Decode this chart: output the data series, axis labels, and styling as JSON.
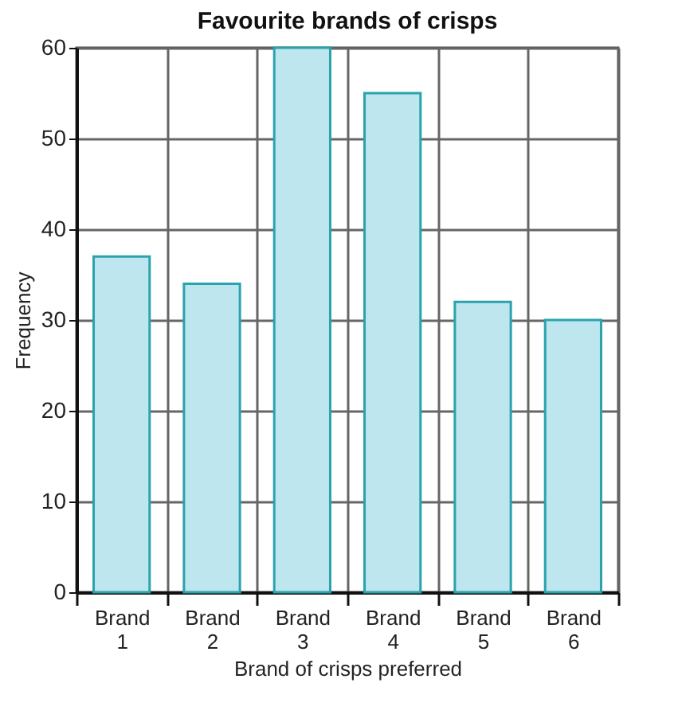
{
  "chart_data": {
    "type": "bar",
    "title": "Favourite brands of crisps",
    "xlabel": "Brand of crisps preferred",
    "ylabel": "Frequency",
    "categories": [
      "Brand 1",
      "Brand 2",
      "Brand 3",
      "Brand 4",
      "Brand 5",
      "Brand 6"
    ],
    "values": [
      37,
      34,
      60,
      55,
      32,
      30
    ],
    "color": "#bde6ef",
    "ylim": [
      0,
      60
    ],
    "yticks": [
      0,
      10,
      20,
      30,
      40,
      50,
      60
    ],
    "grid": true
  }
}
